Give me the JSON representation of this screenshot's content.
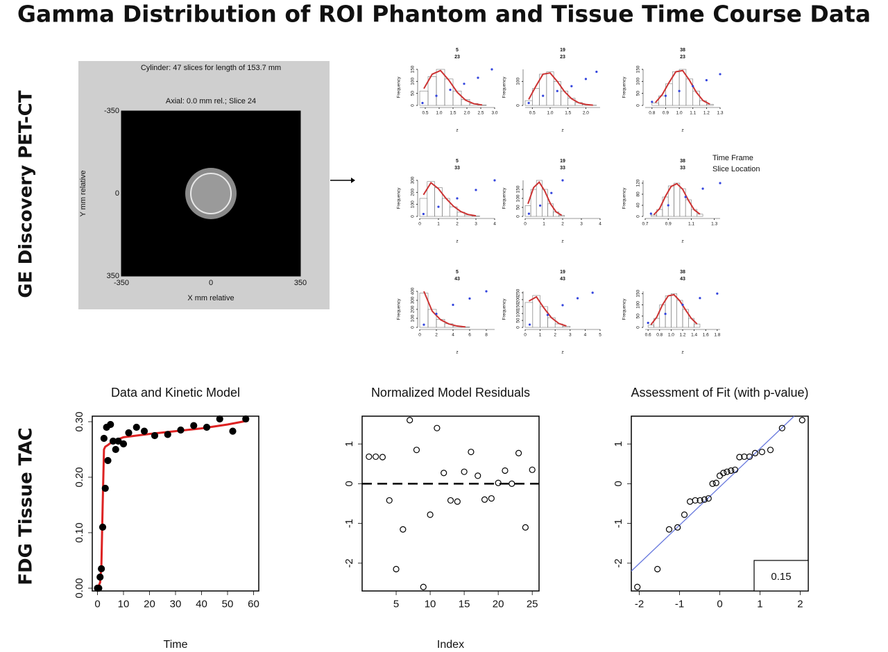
{
  "title": "Gamma Distribution of ROI Phantom and Tissue Time Course Data",
  "row_labels": [
    "GE Discovery PET-CT",
    "FDG Tissue  TAC"
  ],
  "legend": [
    "Time Frame",
    "Slice Location"
  ],
  "chart_data": [
    {
      "type": "image",
      "title": [
        "Cylinder: 47 slices for length of 153.7 mm",
        "Axial: 0.0 mm rel.; Slice 24"
      ],
      "xlabel": "X mm relative",
      "ylabel": "Y mm relative",
      "xlim": [
        -350,
        350
      ],
      "xticks": [
        -350,
        0,
        350
      ],
      "ylim": [
        350,
        -350
      ],
      "yticks": [
        -350,
        0,
        350
      ]
    },
    {
      "type": "histogram",
      "title": [
        "5",
        "23"
      ],
      "xlabel": "z",
      "ylabel": "Frequency",
      "xlim": [
        0.3,
        3.0
      ],
      "xticks": [
        0.5,
        {
          "value": 1,
          "label": "1.0"
        },
        1.5,
        {
          "value": 2,
          "label": "2.0"
        },
        2.5,
        {
          "value": 3,
          "label": "3.0"
        }
      ],
      "ylim": [
        0,
        150
      ],
      "yticks": [
        0,
        50,
        100,
        150
      ],
      "bins": [
        0.3,
        0.6,
        0.9,
        1.2,
        1.5,
        1.8,
        2.1,
        2.4,
        2.7
      ],
      "counts": [
        60,
        120,
        150,
        110,
        60,
        25,
        8,
        2
      ],
      "fit": [
        70,
        130,
        145,
        105,
        55,
        22,
        7,
        2
      ],
      "qq_x": [
        0.4,
        0.9,
        1.4,
        1.9,
        2.4,
        2.9
      ],
      "qq_y": [
        10,
        40,
        65,
        90,
        115,
        150
      ],
      "fit_color": "#cc3333",
      "qq_color": "#3344dd"
    },
    {
      "type": "histogram",
      "title": [
        "19",
        "23"
      ],
      "xlabel": "z",
      "ylabel": "Frequency",
      "xlim": [
        0.3,
        2.4
      ],
      "xticks": [
        0.5,
        {
          "value": 1,
          "label": "1.0"
        },
        1.5,
        {
          "value": 2,
          "label": "2.0"
        }
      ],
      "ylim": [
        0,
        150
      ],
      "yticks": [
        0,
        100
      ],
      "bins": [
        0.3,
        0.5,
        0.7,
        0.9,
        1.1,
        1.3,
        1.5,
        1.7,
        1.9,
        2.1,
        2.3
      ],
      "counts": [
        20,
        70,
        130,
        140,
        100,
        60,
        30,
        12,
        4,
        1
      ],
      "fit": [
        25,
        80,
        130,
        135,
        100,
        58,
        28,
        11,
        4,
        1
      ],
      "qq_x": [
        0.4,
        0.8,
        1.2,
        1.6,
        2.0,
        2.3
      ],
      "qq_y": [
        10,
        40,
        60,
        80,
        110,
        140
      ],
      "fit_color": "#cc3333",
      "qq_color": "#3344dd"
    },
    {
      "type": "histogram",
      "title": [
        "38",
        "23"
      ],
      "xlabel": "z",
      "ylabel": "Frequency",
      "xlim": [
        0.75,
        1.3
      ],
      "xticks": [
        0.8,
        0.9,
        {
          "value": 1,
          "label": "1.0"
        },
        1.1,
        1.2,
        1.3
      ],
      "ylim": [
        0,
        150
      ],
      "yticks": [
        0,
        50,
        100,
        150
      ],
      "bins": [
        0.8,
        0.85,
        0.9,
        0.95,
        1.0,
        1.05,
        1.1,
        1.15,
        1.2,
        1.25
      ],
      "counts": [
        10,
        40,
        90,
        140,
        150,
        110,
        60,
        20,
        5
      ],
      "fit": [
        12,
        45,
        95,
        140,
        145,
        105,
        55,
        20,
        5
      ],
      "qq_x": [
        0.8,
        0.9,
        1.0,
        1.1,
        1.2,
        1.3
      ],
      "qq_y": [
        15,
        40,
        60,
        80,
        105,
        130
      ],
      "fit_color": "#cc3333",
      "qq_color": "#3344dd"
    },
    {
      "type": "histogram",
      "title": [
        "5",
        "33"
      ],
      "xlabel": "z",
      "ylabel": "Frequency",
      "xlim": [
        0,
        4
      ],
      "xticks": [
        0,
        1,
        2,
        3,
        4
      ],
      "ylim": [
        0,
        300
      ],
      "yticks": [
        0,
        100,
        200,
        300
      ],
      "bins": [
        0,
        0.4,
        0.8,
        1.2,
        1.6,
        2.0,
        2.4,
        2.8,
        3.2
      ],
      "counts": [
        150,
        290,
        240,
        150,
        80,
        35,
        12,
        4
      ],
      "fit": [
        180,
        280,
        230,
        150,
        85,
        40,
        15,
        5
      ],
      "qq_x": [
        0.2,
        1,
        2,
        3,
        4
      ],
      "qq_y": [
        20,
        80,
        150,
        220,
        300
      ],
      "fit_color": "#cc3333",
      "qq_color": "#3344dd"
    },
    {
      "type": "histogram",
      "title": [
        "19",
        "33"
      ],
      "xlabel": "z",
      "ylabel": "Frequency",
      "xlim": [
        0,
        4
      ],
      "xticks": [
        0,
        1,
        2,
        3,
        4
      ],
      "ylim": [
        0,
        200
      ],
      "yticks": [
        0,
        50,
        100,
        150
      ],
      "bins": [
        0,
        0.3,
        0.6,
        0.9,
        1.2,
        1.5,
        1.8,
        2.1
      ],
      "counts": [
        60,
        150,
        200,
        150,
        70,
        25,
        5
      ],
      "fit": [
        70,
        160,
        190,
        140,
        70,
        25,
        6
      ],
      "qq_x": [
        0.2,
        0.8,
        1.4,
        2.0
      ],
      "qq_y": [
        15,
        60,
        130,
        200
      ],
      "fit_color": "#cc3333",
      "qq_color": "#3344dd"
    },
    {
      "type": "histogram",
      "title": [
        "38",
        "33"
      ],
      "xlabel": "z",
      "ylabel": "Frequency",
      "xlim": [
        0.7,
        1.35
      ],
      "xticks": [
        0.7,
        0.9,
        1.1,
        1.3
      ],
      "ylim": [
        0,
        130
      ],
      "yticks": [
        0,
        40,
        80,
        120
      ],
      "bins": [
        0.75,
        0.8,
        0.85,
        0.9,
        0.95,
        1.0,
        1.05,
        1.1,
        1.15,
        1.2
      ],
      "counts": [
        5,
        25,
        70,
        110,
        120,
        100,
        60,
        25,
        8
      ],
      "fit": [
        6,
        28,
        72,
        108,
        118,
        98,
        58,
        24,
        8
      ],
      "qq_x": [
        0.75,
        0.9,
        1.05,
        1.2,
        1.35
      ],
      "qq_y": [
        10,
        40,
        70,
        100,
        120
      ],
      "fit_color": "#cc3333",
      "qq_color": "#3344dd"
    },
    {
      "type": "histogram",
      "title": [
        "5",
        "43"
      ],
      "xlabel": "z",
      "ylabel": "Frequency",
      "xlim": [
        0,
        9
      ],
      "xticks": [
        0,
        2,
        4,
        6,
        8
      ],
      "ylim": [
        0,
        400
      ],
      "yticks": [
        0,
        100,
        200,
        300,
        400
      ],
      "bins": [
        0,
        1,
        2,
        3,
        4,
        5,
        6
      ],
      "counts": [
        380,
        200,
        90,
        40,
        15,
        5
      ],
      "fit": [
        400,
        180,
        85,
        38,
        15,
        5
      ],
      "qq_x": [
        0.5,
        2,
        4,
        6,
        8
      ],
      "qq_y": [
        30,
        150,
        250,
        320,
        400
      ],
      "fit_color": "#cc3333",
      "qq_color": "#3344dd"
    },
    {
      "type": "histogram",
      "title": [
        "19",
        "43"
      ],
      "xlabel": "z",
      "ylabel": "Frequency",
      "xlim": [
        0,
        5
      ],
      "xticks": [
        0,
        1,
        2,
        3,
        4,
        5
      ],
      "ylim": [
        0,
        260
      ],
      "yticks": [
        0,
        50,
        100,
        150,
        200,
        250
      ],
      "bins": [
        0,
        0.5,
        1,
        1.5,
        2,
        2.5,
        3
      ],
      "counts": [
        180,
        230,
        150,
        70,
        25,
        8
      ],
      "fit": [
        190,
        220,
        140,
        70,
        28,
        10
      ],
      "qq_x": [
        0.3,
        1.5,
        2.5,
        3.5,
        4.5
      ],
      "qq_y": [
        20,
        90,
        160,
        210,
        250
      ],
      "fit_color": "#cc3333",
      "qq_color": "#3344dd"
    },
    {
      "type": "histogram",
      "title": [
        "38",
        "43"
      ],
      "xlabel": "z",
      "ylabel": "Frequency",
      "xlim": [
        0.55,
        1.85
      ],
      "xticks": [
        0.6,
        0.8,
        {
          "value": 1,
          "label": "1.0"
        },
        1.2,
        1.4,
        1.6,
        1.8
      ],
      "ylim": [
        0,
        160
      ],
      "yticks": [
        0,
        50,
        100,
        150
      ],
      "bins": [
        0.6,
        0.7,
        0.8,
        0.9,
        1.0,
        1.1,
        1.2,
        1.3,
        1.4,
        1.5
      ],
      "counts": [
        10,
        40,
        100,
        140,
        150,
        120,
        80,
        40,
        15
      ],
      "fit": [
        12,
        45,
        100,
        140,
        145,
        118,
        78,
        40,
        15
      ],
      "qq_x": [
        0.6,
        0.9,
        1.2,
        1.5,
        1.8
      ],
      "qq_y": [
        20,
        60,
        100,
        130,
        150
      ],
      "fit_color": "#cc3333",
      "qq_color": "#3344dd"
    },
    {
      "type": "scatter",
      "title": "Data and Kinetic Model",
      "xlabel": "Time",
      "marker": "filled",
      "xlim": [
        -2,
        62
      ],
      "xticks": [
        0,
        10,
        20,
        30,
        40,
        50,
        60
      ],
      "ylim": [
        -0.005,
        0.31
      ],
      "yticks": [
        {
          "value": 0,
          "label": "0.00"
        },
        {
          "value": 0.1,
          "label": "0.10"
        },
        {
          "value": 0.2,
          "label": "0.20"
        },
        {
          "value": 0.3,
          "label": "0.30"
        }
      ],
      "x": [
        0,
        0.5,
        1,
        1.5,
        2,
        2.5,
        3,
        3.5,
        4,
        5,
        6,
        7,
        8,
        10,
        12,
        15,
        18,
        22,
        27,
        32,
        37,
        42,
        47,
        52,
        57
      ],
      "y": [
        0,
        0,
        0.02,
        0.035,
        0.11,
        0.27,
        0.18,
        0.29,
        0.23,
        0.295,
        0.265,
        0.25,
        0.265,
        0.26,
        0.28,
        0.29,
        0.283,
        0.275,
        0.277,
        0.285,
        0.293,
        0.29,
        0.305,
        0.283,
        0.305
      ],
      "line": {
        "color": "#dd2222",
        "x": [
          0,
          1,
          1.5,
          2,
          2.5,
          3,
          4,
          6,
          10,
          20,
          30,
          40,
          50,
          58
        ],
        "y": [
          0,
          0.01,
          0.04,
          0.15,
          0.25,
          0.255,
          0.258,
          0.265,
          0.272,
          0.278,
          0.283,
          0.288,
          0.295,
          0.302
        ]
      }
    },
    {
      "type": "scatter",
      "title": "Normalized Model Residuals",
      "xlabel": "Index",
      "marker": "open",
      "xlim": [
        0,
        26
      ],
      "xticks": [
        5,
        10,
        15,
        20,
        25
      ],
      "ylim": [
        -2.7,
        1.7
      ],
      "yticks": [
        -2,
        -1,
        0,
        1
      ],
      "hline": 0,
      "x": [
        1,
        2,
        3,
        4,
        5,
        6,
        7,
        8,
        9,
        10,
        11,
        12,
        13,
        14,
        15,
        16,
        17,
        18,
        19,
        20,
        21,
        22,
        23,
        24,
        25
      ],
      "y": [
        0.68,
        0.68,
        0.67,
        -0.42,
        -2.15,
        -1.15,
        1.6,
        0.85,
        -2.6,
        -0.78,
        1.4,
        0.27,
        -0.42,
        -0.45,
        0.3,
        0.8,
        0.2,
        -0.4,
        -0.37,
        0.02,
        0.33,
        0,
        0.77,
        -1.1,
        0.35
      ]
    },
    {
      "type": "scatter",
      "title": "Assessment of Fit (with p-value)",
      "marker": "open",
      "xlim": [
        -2.2,
        2.2
      ],
      "xticks": [
        -2,
        -1,
        0,
        1,
        2
      ],
      "ylim": [
        -2.7,
        1.7
      ],
      "yticks": [
        -2,
        -1,
        0,
        1
      ],
      "annotation": "0.15",
      "x": [
        -2.05,
        -1.55,
        -1.26,
        -1.05,
        -0.88,
        -0.74,
        -0.61,
        -0.49,
        -0.38,
        -0.28,
        -0.18,
        -0.09,
        0,
        0.09,
        0.18,
        0.28,
        0.38,
        0.49,
        0.61,
        0.74,
        0.88,
        1.05,
        1.26,
        1.55,
        2.05
      ],
      "y": [
        -2.6,
        -2.15,
        -1.15,
        -1.1,
        -0.78,
        -0.45,
        -0.42,
        -0.42,
        -0.4,
        -0.37,
        0,
        0.02,
        0.2,
        0.27,
        0.3,
        0.33,
        0.35,
        0.67,
        0.68,
        0.68,
        0.77,
        0.8,
        0.85,
        1.4,
        1.6
      ],
      "line": {
        "color": "#6677dd",
        "x": [
          -2.2,
          1.85
        ],
        "y": [
          -2.2,
          1.7
        ]
      }
    }
  ]
}
